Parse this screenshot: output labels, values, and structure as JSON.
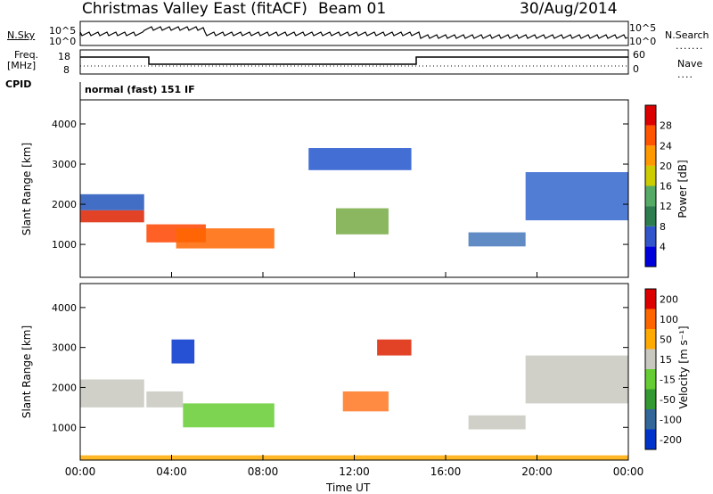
{
  "header": {
    "site_title": "Christmas Valley East (fitACF)",
    "beam": "Beam 01",
    "date": "30/Aug/2014"
  },
  "aux": {
    "nsky_label": "N.Sky",
    "nsearch_label": "N.Search",
    "freq_label_1": "Freq.",
    "freq_label_2": "[MHz]",
    "nave_label": "Nave",
    "cpid_label": "CPID",
    "cpid_text": "normal (fast) 151 IF",
    "noise_ticks_left": [
      "10^5",
      "10^0"
    ],
    "noise_ticks_right": [
      "10^5",
      "10^0"
    ],
    "freq_ticks_left": [
      "18",
      "8"
    ],
    "nave_ticks_right": [
      "60",
      "0"
    ]
  },
  "chart_data": [
    {
      "type": "heatmap",
      "name": "power",
      "ylabel": "Slant Range [km]",
      "xlabel": "Time UT",
      "x_ticks": [
        "00:00",
        "04:00",
        "08:00",
        "12:00",
        "16:00",
        "20:00",
        "00:00"
      ],
      "y_ticks": [
        1000,
        2000,
        3000,
        4000
      ],
      "ylim": [
        180,
        4600
      ],
      "xlim_hours": [
        0,
        24
      ],
      "colorbar": {
        "label": "Power [dB]",
        "ticks": [
          4,
          8,
          12,
          16,
          20,
          24,
          28
        ],
        "colors": [
          "#0000dd",
          "#3355cc",
          "#2e7d4f",
          "#55aa66",
          "#cccc00",
          "#ff9900",
          "#ff5500",
          "#dd0000"
        ]
      },
      "bands": [
        {
          "t0": 0.0,
          "t1": 2.8,
          "r0": 1550,
          "r1": 1850,
          "color": "#dd2200"
        },
        {
          "t0": 0.0,
          "t1": 2.8,
          "r0": 1850,
          "r1": 2250,
          "color": "#2255bb"
        },
        {
          "t0": 2.9,
          "t1": 5.5,
          "r0": 1050,
          "r1": 1500,
          "color": "#ff4400"
        },
        {
          "t0": 4.2,
          "t1": 8.5,
          "r0": 900,
          "r1": 1400,
          "color": "#ff6600"
        },
        {
          "t0": 11.2,
          "t1": 13.5,
          "r0": 1250,
          "r1": 1900,
          "color": "#77aa44"
        },
        {
          "t0": 17.0,
          "t1": 19.5,
          "r0": 950,
          "r1": 1300,
          "color": "#4477bb"
        },
        {
          "t0": 10.0,
          "t1": 14.5,
          "r0": 2850,
          "r1": 3400,
          "color": "#2255cc"
        },
        {
          "t0": 19.5,
          "t1": 24.0,
          "r0": 1600,
          "r1": 2800,
          "color": "#3366cc"
        }
      ]
    },
    {
      "type": "heatmap",
      "name": "velocity",
      "ylabel": "Slant Range [km]",
      "xlabel": "Time UT",
      "x_ticks": [
        "00:00",
        "04:00",
        "08:00",
        "12:00",
        "16:00",
        "20:00",
        "00:00"
      ],
      "y_ticks": [
        1000,
        2000,
        3000,
        4000
      ],
      "ylim": [
        180,
        4600
      ],
      "xlim_hours": [
        0,
        24
      ],
      "colorbar": {
        "label": "Velocity [m s⁻¹]",
        "ticks": [
          200,
          100,
          50,
          15,
          -15,
          -50,
          -100,
          -200
        ],
        "colors": [
          "#0033cc",
          "#336699",
          "#339933",
          "#66cc33",
          "#c8c8c0",
          "#ffaa00",
          "#ff6600",
          "#dd0000"
        ]
      },
      "bands": [
        {
          "t0": 0.0,
          "t1": 2.8,
          "r0": 1500,
          "r1": 2200,
          "color": "#c8c8c0"
        },
        {
          "t0": 2.9,
          "t1": 4.5,
          "r0": 1500,
          "r1": 1900,
          "color": "#c8c8c0"
        },
        {
          "t0": 4.5,
          "t1": 8.5,
          "r0": 1000,
          "r1": 1600,
          "color": "#66cc33"
        },
        {
          "t0": 4.0,
          "t1": 5.0,
          "r0": 2600,
          "r1": 3200,
          "color": "#0033cc"
        },
        {
          "t0": 11.5,
          "t1": 13.5,
          "r0": 1400,
          "r1": 1900,
          "color": "#ff7722"
        },
        {
          "t0": 13.0,
          "t1": 14.5,
          "r0": 2800,
          "r1": 3200,
          "color": "#dd2200"
        },
        {
          "t0": 17.0,
          "t1": 19.5,
          "r0": 950,
          "r1": 1300,
          "color": "#c8c8c0"
        },
        {
          "t0": 19.5,
          "t1": 24.0,
          "r0": 1600,
          "r1": 2800,
          "color": "#c8c8c0"
        },
        {
          "t0": 0.0,
          "t1": 24.0,
          "r0": 180,
          "r1": 300,
          "color": "#ffaa00"
        }
      ]
    }
  ]
}
